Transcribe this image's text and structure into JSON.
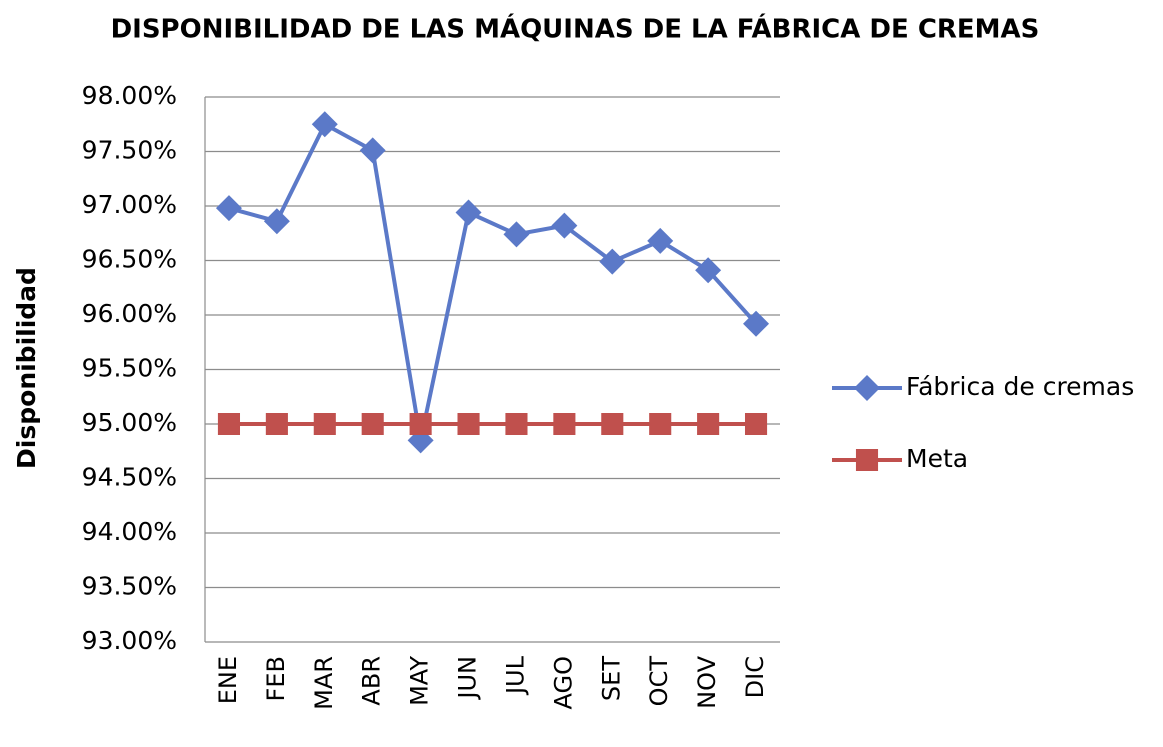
{
  "chart_data": {
    "type": "line",
    "title": "DISPONIBILIDAD DE LAS MÁQUINAS DE LA FÁBRICA DE CREMAS",
    "y_label": "Disponibilidad",
    "categories": [
      "ENE",
      "FEB",
      "MAR",
      "ABR",
      "MAY",
      "JUN",
      "JUL",
      "AGO",
      "SET",
      "OCT",
      "NOV",
      "DIC"
    ],
    "series": [
      {
        "name": "Fábrica de cremas",
        "color": "#5b79c8",
        "marker": "diamond",
        "values": [
          96.98,
          96.86,
          97.75,
          97.51,
          94.85,
          96.94,
          96.74,
          96.82,
          96.49,
          96.68,
          96.41,
          95.92
        ]
      },
      {
        "name": "Meta",
        "color": "#c0504d",
        "marker": "square",
        "values": [
          95,
          95,
          95,
          95,
          95,
          95,
          95,
          95,
          95,
          95,
          95,
          95
        ]
      }
    ],
    "ylim": [
      93,
      98
    ],
    "yticks": [
      {
        "value": 93,
        "label": "93.00%"
      },
      {
        "value": 93.5,
        "label": "93.50%"
      },
      {
        "value": 94,
        "label": "94.00%"
      },
      {
        "value": 94.5,
        "label": "94.50%"
      },
      {
        "value": 95,
        "label": "95.00%"
      },
      {
        "value": 95.5,
        "label": "95.50%"
      },
      {
        "value": 96,
        "label": "96.00%"
      },
      {
        "value": 96.5,
        "label": "96.50%"
      },
      {
        "value": 97,
        "label": "97.00%"
      },
      {
        "value": 97.5,
        "label": "97.50%"
      },
      {
        "value": 98,
        "label": "98.00%"
      }
    ],
    "grid": true,
    "legend": "right"
  }
}
